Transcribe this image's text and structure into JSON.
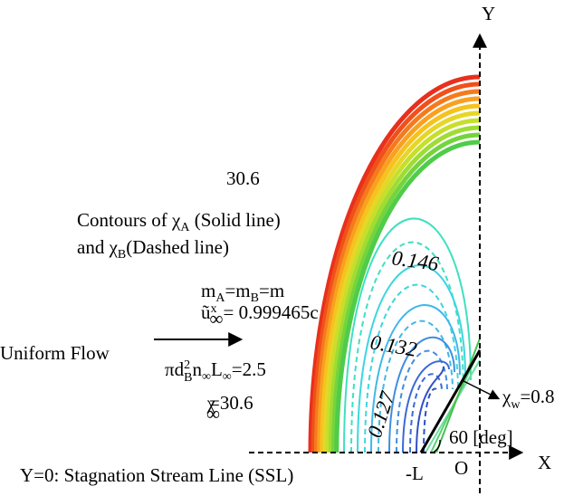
{
  "axis_labels": {
    "y": "Y",
    "x": "X",
    "origin": "O",
    "minus_l": "-L"
  },
  "contour_labels": {
    "outer": "30.6",
    "c1": "0.146",
    "c2": "0.132",
    "c3": "0.127"
  },
  "legend": {
    "line1": [
      "Contours of ",
      "χ",
      "A",
      " (Solid line)"
    ],
    "line2": [
      "and ",
      "χ",
      "B",
      "(Dashed line)"
    ]
  },
  "conditions": {
    "mass": [
      "m",
      "A",
      "=m",
      "B",
      "=m"
    ],
    "velocity": [
      "ũ",
      "x",
      "∞",
      "= 0.999465c"
    ],
    "flow": "Uniform Flow",
    "density": [
      "πd",
      "2",
      "B",
      "n",
      "∞",
      "L",
      "∞",
      "=2.5"
    ],
    "chi_inf": [
      "χ",
      "∞",
      "=30.6"
    ]
  },
  "wall": {
    "chi_w": [
      "χ",
      "w",
      "=0.8"
    ],
    "angle": "60 [deg]"
  },
  "ssl": "Y=0: Stagnation Stream Line (SSL)"
}
